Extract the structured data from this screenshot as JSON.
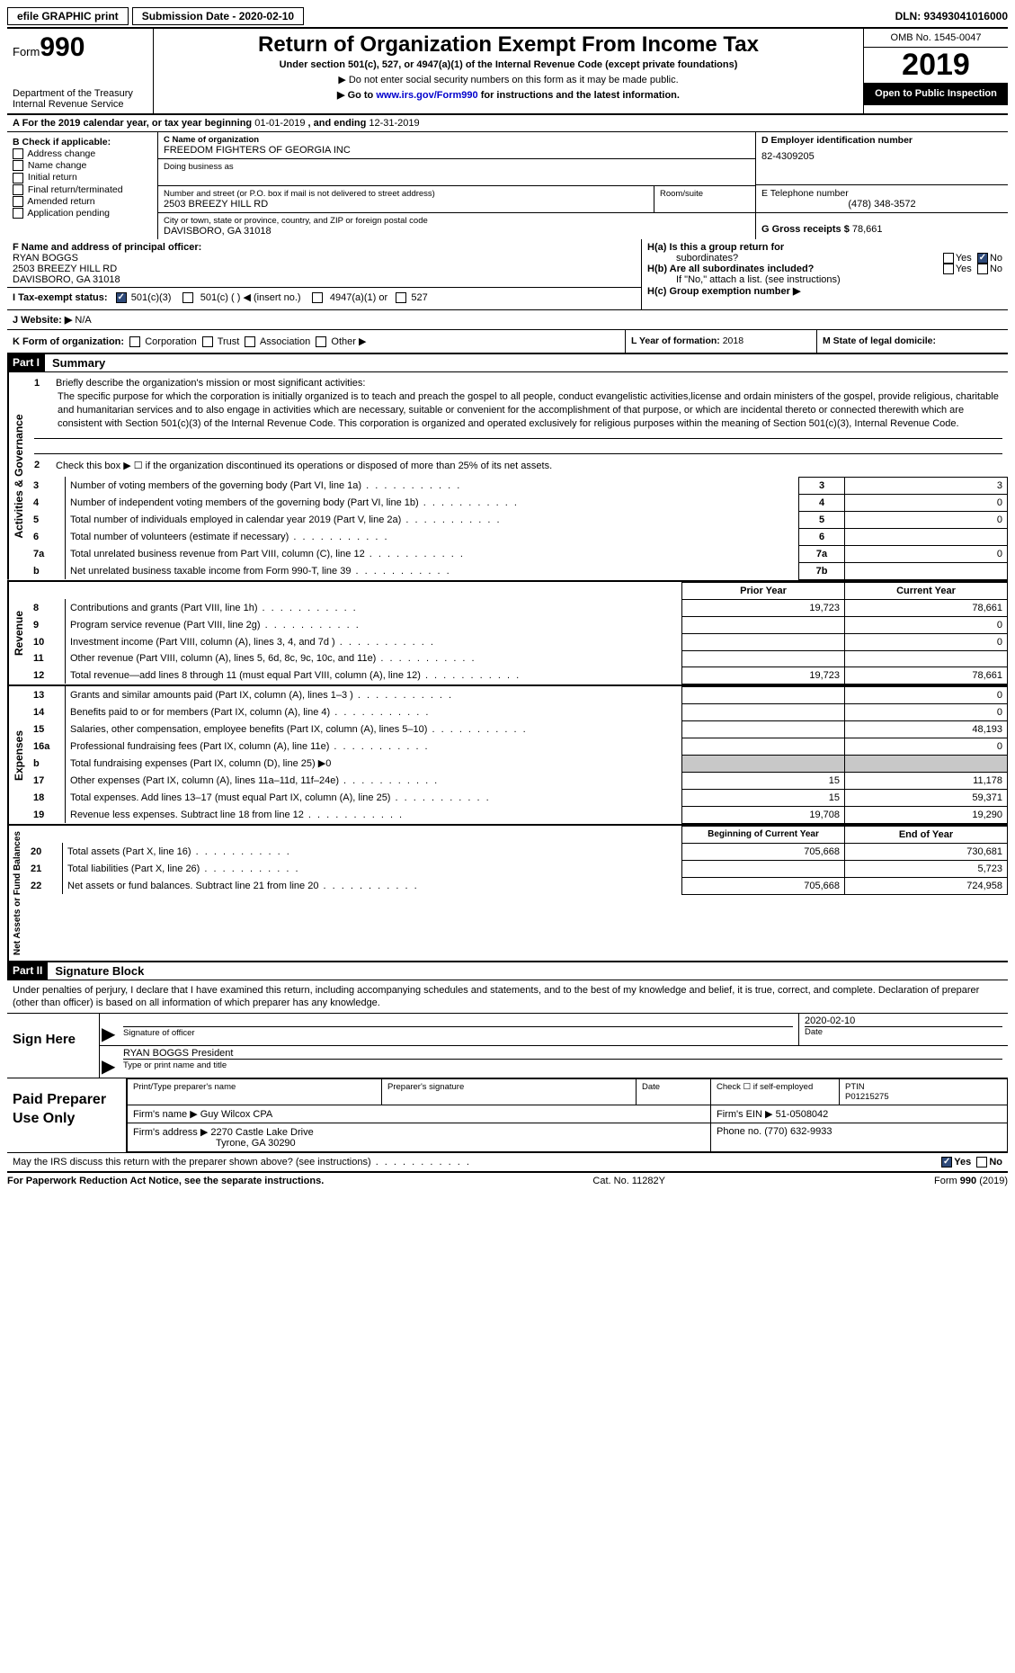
{
  "top": {
    "efile": "efile GRAPHIC print",
    "submission": "Submission Date - 2020-02-10",
    "dln": "DLN: 93493041016000"
  },
  "header": {
    "form_label": "Form",
    "form_num": "990",
    "dept1": "Department of the Treasury",
    "dept2": "Internal Revenue Service",
    "title": "Return of Organization Exempt From Income Tax",
    "sub1": "Under section 501(c), 527, or 4947(a)(1) of the Internal Revenue Code (except private foundations)",
    "sub2": "▶ Do not enter social security numbers on this form as it may be made public.",
    "sub3_pre": "▶ Go to ",
    "sub3_link": "www.irs.gov/Form990",
    "sub3_post": " for instructions and the latest information.",
    "omb": "OMB No. 1545-0047",
    "year": "2019",
    "open": "Open to Public Inspection"
  },
  "lineA": {
    "pre": "A    For the 2019 calendar year, or tax year beginning ",
    "begin": "01-01-2019",
    "mid": "   , and ending ",
    "end": "12-31-2019"
  },
  "B": {
    "hdr": "B Check if applicable:",
    "addr": "Address change",
    "name": "Name change",
    "init": "Initial return",
    "final": "Final return/terminated",
    "amend": "Amended return",
    "app": "Application pending"
  },
  "C": {
    "name_lbl": "C Name of organization",
    "name": "FREEDOM FIGHTERS OF GEORGIA INC",
    "dba_lbl": "Doing business as",
    "addr_lbl": "Number and street (or P.O. box if mail is not delivered to street address)",
    "addr": "2503 BREEZY HILL RD",
    "room_lbl": "Room/suite",
    "city_lbl": "City or town, state or province, country, and ZIP or foreign postal code",
    "city": "DAVISBORO, GA  31018"
  },
  "D": {
    "lbl": "D Employer identification number",
    "val": "82-4309205"
  },
  "E": {
    "lbl": "E Telephone number",
    "val": "(478) 348-3572"
  },
  "G": {
    "lbl": "G Gross receipts $ ",
    "val": "78,661"
  },
  "F": {
    "lbl": "F  Name and address of principal officer:",
    "name": "RYAN BOGGS",
    "addr1": "2503 BREEZY HILL RD",
    "addr2": "DAVISBORO, GA  31018"
  },
  "H": {
    "a": "H(a)  Is this a group return for",
    "a2": "subordinates?",
    "b": "H(b)  Are all subordinates included?",
    "bnote": "If \"No,\" attach a list. (see instructions)",
    "c": "H(c)  Group exemption number ▶",
    "yes": "Yes",
    "no": "No"
  },
  "I": {
    "lbl": "I    Tax-exempt status:",
    "o1": "501(c)(3)",
    "o2": "501(c) (   ) ◀ (insert no.)",
    "o3": "4947(a)(1) or",
    "o4": "527"
  },
  "J": {
    "lbl": "J   Website: ▶",
    "val": "  N/A"
  },
  "K": {
    "lbl": "K Form of organization:",
    "corp": "Corporation",
    "trust": "Trust",
    "assoc": "Association",
    "other": "Other ▶"
  },
  "L": {
    "lbl": "L Year of formation: ",
    "val": "2018"
  },
  "M": {
    "lbl": "M State of legal domicile:"
  },
  "part1": {
    "hdr": "Part I",
    "title": "Summary",
    "tab_ag": "Activities & Governance",
    "tab_rev": "Revenue",
    "tab_exp": "Expenses",
    "tab_na": "Net Assets or Fund Balances",
    "l1_lbl": "Briefly describe the organization's mission or most significant activities:",
    "l1_txt": "The specific purpose for which the corporation is initially organized is to teach and preach the gospel to all people, conduct evangelistic activities,license and ordain ministers of the gospel, provide religious, charitable and humanitarian services and to also engage in activities which are necessary, suitable or convenient for the accomplishment of that purpose, or which are incidental thereto or connected therewith which are consistent with Section 501(c)(3) of the Internal Revenue Code. This corporation is organized and operated exclusively for religious purposes within the meaning of Section 501(c)(3), Internal Revenue Code.",
    "l2": "Check this box ▶ ☐ if the organization discontinued its operations or disposed of more than 25% of its net assets.",
    "rows_ag": [
      {
        "n": "3",
        "d": "Number of voting members of the governing body (Part VI, line 1a)",
        "r": "3",
        "v": "3"
      },
      {
        "n": "4",
        "d": "Number of independent voting members of the governing body (Part VI, line 1b)",
        "r": "4",
        "v": "0"
      },
      {
        "n": "5",
        "d": "Total number of individuals employed in calendar year 2019 (Part V, line 2a)",
        "r": "5",
        "v": "0"
      },
      {
        "n": "6",
        "d": "Total number of volunteers (estimate if necessary)",
        "r": "6",
        "v": ""
      },
      {
        "n": "7a",
        "d": "Total unrelated business revenue from Part VIII, column (C), line 12",
        "r": "7a",
        "v": "0"
      },
      {
        "n": "b",
        "d": "Net unrelated business taxable income from Form 990-T, line 39",
        "r": "7b",
        "v": ""
      }
    ],
    "hdr_py": "Prior Year",
    "hdr_cy": "Current Year",
    "rows_rev": [
      {
        "n": "8",
        "d": "Contributions and grants (Part VIII, line 1h)",
        "py": "19,723",
        "cy": "78,661"
      },
      {
        "n": "9",
        "d": "Program service revenue (Part VIII, line 2g)",
        "py": "",
        "cy": "0"
      },
      {
        "n": "10",
        "d": "Investment income (Part VIII, column (A), lines 3, 4, and 7d )",
        "py": "",
        "cy": "0"
      },
      {
        "n": "11",
        "d": "Other revenue (Part VIII, column (A), lines 5, 6d, 8c, 9c, 10c, and 11e)",
        "py": "",
        "cy": ""
      },
      {
        "n": "12",
        "d": "Total revenue—add lines 8 through 11 (must equal Part VIII, column (A), line 12)",
        "py": "19,723",
        "cy": "78,661"
      }
    ],
    "rows_exp": [
      {
        "n": "13",
        "d": "Grants and similar amounts paid (Part IX, column (A), lines 1–3 )",
        "py": "",
        "cy": "0"
      },
      {
        "n": "14",
        "d": "Benefits paid to or for members (Part IX, column (A), line 4)",
        "py": "",
        "cy": "0"
      },
      {
        "n": "15",
        "d": "Salaries, other compensation, employee benefits (Part IX, column (A), lines 5–10)",
        "py": "",
        "cy": "48,193"
      },
      {
        "n": "16a",
        "d": "Professional fundraising fees (Part IX, column (A), line 11e)",
        "py": "",
        "cy": "0"
      },
      {
        "n": "b",
        "d": "Total fundraising expenses (Part IX, column (D), line 25) ▶0",
        "shade": true
      },
      {
        "n": "17",
        "d": "Other expenses (Part IX, column (A), lines 11a–11d, 11f–24e)",
        "py": "15",
        "cy": "11,178"
      },
      {
        "n": "18",
        "d": "Total expenses. Add lines 13–17 (must equal Part IX, column (A), line 25)",
        "py": "15",
        "cy": "59,371"
      },
      {
        "n": "19",
        "d": "Revenue less expenses. Subtract line 18 from line 12",
        "py": "19,708",
        "cy": "19,290"
      }
    ],
    "hdr_boy": "Beginning of Current Year",
    "hdr_eoy": "End of Year",
    "rows_na": [
      {
        "n": "20",
        "d": "Total assets (Part X, line 16)",
        "py": "705,668",
        "cy": "730,681"
      },
      {
        "n": "21",
        "d": "Total liabilities (Part X, line 26)",
        "py": "",
        "cy": "5,723"
      },
      {
        "n": "22",
        "d": "Net assets or fund balances. Subtract line 21 from line 20",
        "py": "705,668",
        "cy": "724,958"
      }
    ]
  },
  "part2": {
    "hdr": "Part II",
    "title": "Signature Block",
    "declare": "Under penalties of perjury, I declare that I have examined this return, including accompanying schedules and statements, and to the best of my knowledge and belief, it is true, correct, and complete. Declaration of preparer (other than officer) is based on all information of which preparer has any knowledge.",
    "sign_here": "Sign Here",
    "sig_officer": "Signature of officer",
    "sig_date": "Date",
    "sig_date_val": "2020-02-10",
    "officer_name": "RYAN BOGGS President",
    "type_name": "Type or print name and title",
    "paid": "Paid Preparer Use Only",
    "prep_name_lbl": "Print/Type preparer's name",
    "prep_sig_lbl": "Preparer's signature",
    "date_lbl": "Date",
    "check_lbl": "Check ☐ if self-employed",
    "ptin_lbl": "PTIN",
    "ptin": "P01215275",
    "firm_name_lbl": "Firm's name    ▶ ",
    "firm_name": "Guy Wilcox CPA",
    "firm_ein_lbl": "Firm's EIN ▶ ",
    "firm_ein": "51-0508042",
    "firm_addr_lbl": "Firm's address ▶ ",
    "firm_addr1": "2270 Castle Lake Drive",
    "firm_addr2": "Tyrone, GA  30290",
    "phone_lbl": "Phone no. ",
    "phone": "(770) 632-9933",
    "discuss": "May the IRS discuss this return with the preparer shown above? (see instructions)",
    "yes": "Yes",
    "no": "No"
  },
  "footer": {
    "l": "For Paperwork Reduction Act Notice, see the separate instructions.",
    "m": "Cat. No. 11282Y",
    "r": "Form 990 (2019)"
  }
}
